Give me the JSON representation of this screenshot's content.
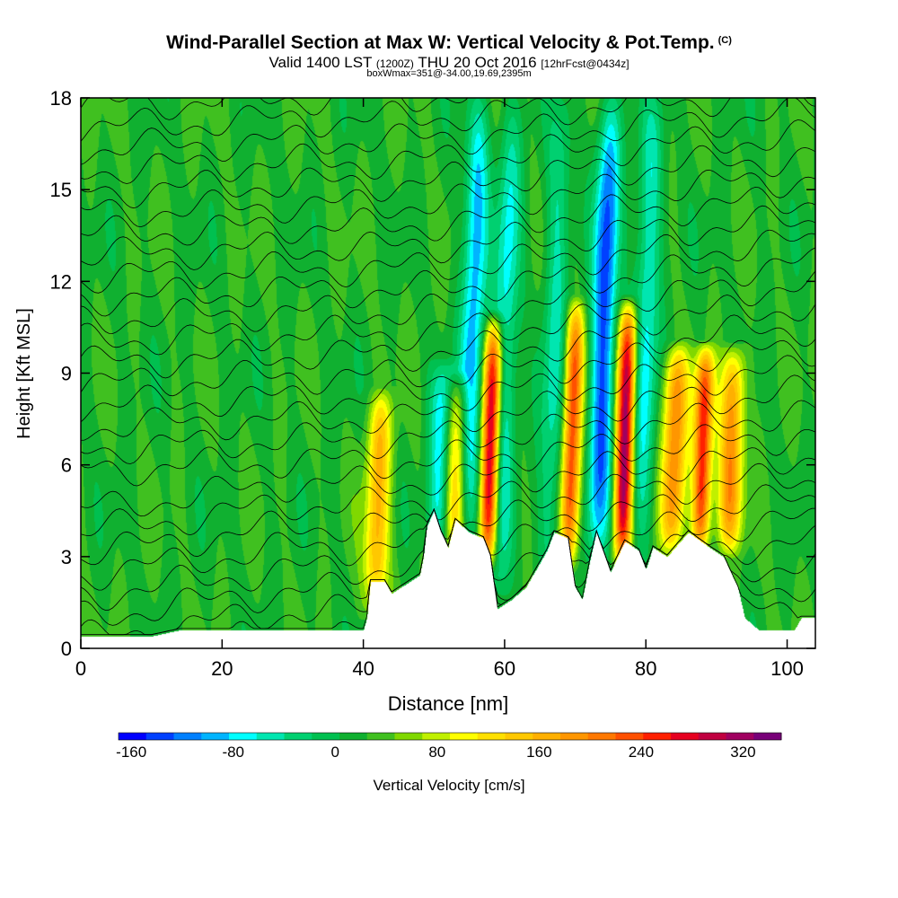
{
  "header": {
    "title": "Wind-Parallel Section at Max W: Vertical Velocity & Pot.Temp.",
    "copyright": "(C)",
    "valid_prefix": "Valid 1400 LST",
    "valid_utc": "(1200Z)",
    "valid_date": "THU 20 Oct 2016",
    "forecast": "[12hrFcst@0434z]",
    "box_info": "boxWmax=351@-34.00,19.69,2395m"
  },
  "chart_data": {
    "type": "heatmap",
    "xlabel": "Distance [nm]",
    "ylabel": "Height [Kft MSL]",
    "xlim": [
      0,
      104
    ],
    "ylim": [
      0,
      18
    ],
    "x_ticks": [
      0,
      20,
      40,
      60,
      80,
      100
    ],
    "y_ticks": [
      0,
      3,
      6,
      9,
      12,
      15,
      18
    ],
    "colorbar": {
      "label": "Vertical Velocity [cm/s]",
      "tick_labels": [
        "-160",
        "-80",
        "0",
        "80",
        "160",
        "240",
        "320"
      ],
      "tick_values": [
        -160,
        -80,
        0,
        80,
        160,
        240,
        320
      ],
      "range": [
        -170,
        350
      ],
      "colors": [
        "#0000ff",
        "#0040ff",
        "#0080ff",
        "#00b4ff",
        "#00ffff",
        "#00e6b0",
        "#00d070",
        "#00c050",
        "#10b030",
        "#40c020",
        "#80d800",
        "#c0f000",
        "#ffff00",
        "#ffe000",
        "#ffc800",
        "#ffb000",
        "#ff9600",
        "#ff7800",
        "#ff5000",
        "#ff2000",
        "#e60020",
        "#c00040",
        "#a00060",
        "#780078"
      ]
    },
    "terrain_kft": [
      [
        0,
        0.4
      ],
      [
        10,
        0.4
      ],
      [
        14,
        0.6
      ],
      [
        40,
        0.6
      ],
      [
        40.5,
        1.0
      ],
      [
        41,
        2.2
      ],
      [
        43,
        2.2
      ],
      [
        44,
        1.8
      ],
      [
        48,
        2.4
      ],
      [
        48.5,
        3.0
      ],
      [
        49,
        4.0
      ],
      [
        50,
        4.5
      ],
      [
        51,
        3.8
      ],
      [
        52,
        3.3
      ],
      [
        53,
        4.2
      ],
      [
        55,
        3.8
      ],
      [
        57,
        3.6
      ],
      [
        58,
        3.0
      ],
      [
        59,
        1.3
      ],
      [
        61,
        1.6
      ],
      [
        63,
        2.0
      ],
      [
        66,
        3.2
      ],
      [
        67,
        3.8
      ],
      [
        69,
        3.6
      ],
      [
        70,
        2.0
      ],
      [
        71,
        1.6
      ],
      [
        72,
        2.8
      ],
      [
        73,
        3.8
      ],
      [
        75,
        2.5
      ],
      [
        77,
        3.5
      ],
      [
        79,
        3.2
      ],
      [
        80,
        2.6
      ],
      [
        81,
        3.3
      ],
      [
        83,
        3.0
      ],
      [
        86,
        3.8
      ],
      [
        89,
        3.3
      ],
      [
        91,
        3.0
      ],
      [
        93,
        2.0
      ],
      [
        94,
        1.0
      ],
      [
        96,
        0.6
      ],
      [
        101,
        0.6
      ],
      [
        102,
        1.0
      ],
      [
        104,
        1.0
      ]
    ],
    "vertical_velocity_features": [
      {
        "x": 42,
        "y_range": [
          1.5,
          8
        ],
        "w_max": 140
      },
      {
        "x": 51,
        "y_range": [
          3.5,
          9
        ],
        "w_max": -110
      },
      {
        "x": 53,
        "y_range": [
          3.5,
          8.5
        ],
        "w_max": 130
      },
      {
        "x": 55.5,
        "y_range": [
          3.5,
          18
        ],
        "w_max": -120
      },
      {
        "x": 58,
        "y_range": [
          3,
          10.5
        ],
        "w_max": 290
      },
      {
        "x": 60,
        "y_range": [
          1.5,
          18
        ],
        "w_max": -90
      },
      {
        "x": 67,
        "y_range": [
          2,
          18
        ],
        "w_max": -70
      },
      {
        "x": 69.5,
        "y_range": [
          3,
          11
        ],
        "w_max": 220
      },
      {
        "x": 74,
        "y_range": [
          3,
          18
        ],
        "w_max": -160
      },
      {
        "x": 77,
        "y_range": [
          3,
          11
        ],
        "w_max": 300
      },
      {
        "x": 80,
        "y_range": [
          3,
          18
        ],
        "w_max": -90
      },
      {
        "x": 84,
        "y_range": [
          3.5,
          9.5
        ],
        "w_max": 180
      },
      {
        "x": 88,
        "y_range": [
          3.5,
          9.5
        ],
        "w_max": 240
      },
      {
        "x": 92,
        "y_range": [
          3.5,
          9.5
        ],
        "w_max": 170
      }
    ],
    "theta_contour_count": 26
  }
}
